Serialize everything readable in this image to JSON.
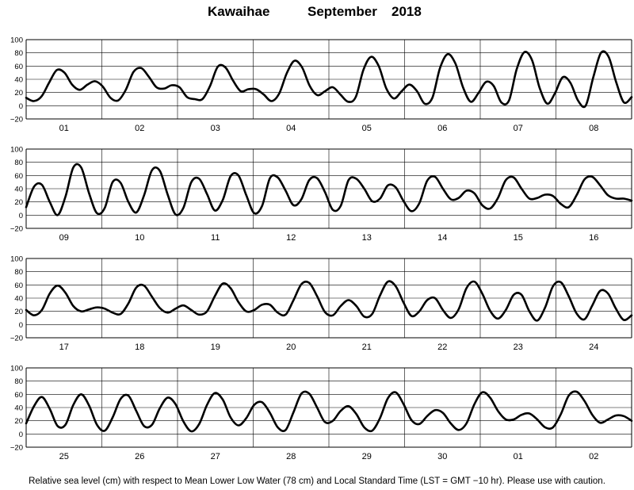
{
  "header": {
    "station": "Kawaihae",
    "month": "September",
    "year": "2018"
  },
  "footnote": "Relative sea level (cm) with respect to Mean Lower Low Water (78 cm) and Local Standard Time (LST = GMT −10 hr). Please use with caution.",
  "chart_data": {
    "type": "line",
    "title": "Kawaihae September 2018",
    "xlabel": "",
    "ylabel": "",
    "ylim": [
      -20,
      100
    ],
    "yticks": [
      "100",
      "80",
      "60",
      "40",
      "20",
      "0",
      "−20"
    ],
    "grid": true,
    "hours_per_point": 2,
    "panels": [
      {
        "days": [
          "01",
          "02",
          "03",
          "04",
          "05",
          "06",
          "07",
          "08"
        ],
        "values": [
          12,
          7,
          14,
          35,
          54,
          50,
          32,
          24,
          32,
          37,
          29,
          12,
          8,
          24,
          51,
          57,
          44,
          28,
          26,
          31,
          28,
          13,
          10,
          10,
          30,
          59,
          58,
          38,
          22,
          25,
          25,
          17,
          7,
          18,
          49,
          68,
          58,
          30,
          16,
          22,
          28,
          17,
          6,
          13,
          54,
          74,
          60,
          26,
          11,
          22,
          32,
          22,
          3,
          12,
          57,
          78,
          64,
          28,
          6,
          19,
          36,
          30,
          5,
          8,
          55,
          81,
          69,
          27,
          3,
          19,
          43,
          35,
          8,
          0,
          43,
          80,
          74,
          35,
          5,
          13
        ]
      },
      {
        "days": [
          "09",
          "10",
          "11",
          "12",
          "13",
          "14",
          "15",
          "16"
        ],
        "values": [
          12,
          43,
          46,
          20,
          0,
          28,
          72,
          72,
          33,
          3,
          11,
          50,
          49,
          20,
          4,
          30,
          68,
          67,
          31,
          1,
          11,
          50,
          55,
          32,
          7,
          23,
          59,
          60,
          30,
          3,
          14,
          56,
          57,
          37,
          15,
          24,
          53,
          56,
          35,
          8,
          14,
          53,
          55,
          40,
          21,
          25,
          45,
          42,
          21,
          6,
          18,
          52,
          58,
          40,
          24,
          26,
          37,
          33,
          15,
          10,
          26,
          53,
          57,
          40,
          25,
          26,
          31,
          29,
          17,
          12,
          30,
          54,
          58,
          45,
          30,
          25,
          25,
          22
        ]
      },
      {
        "days": [
          "17",
          "18",
          "19",
          "20",
          "21",
          "22",
          "23",
          "24"
        ],
        "values": [
          22,
          14,
          22,
          47,
          59,
          48,
          28,
          20,
          23,
          26,
          24,
          18,
          16,
          32,
          56,
          59,
          42,
          25,
          18,
          24,
          29,
          22,
          15,
          20,
          43,
          62,
          55,
          34,
          20,
          22,
          30,
          30,
          18,
          15,
          37,
          61,
          63,
          43,
          19,
          14,
          28,
          37,
          28,
          12,
          16,
          44,
          65,
          58,
          33,
          13,
          20,
          37,
          40,
          22,
          10,
          23,
          55,
          65,
          47,
          21,
          9,
          22,
          45,
          45,
          20,
          6,
          26,
          58,
          64,
          43,
          17,
          8,
          29,
          51,
          47,
          24,
          7,
          14
        ]
      },
      {
        "days": [
          "25",
          "26",
          "27",
          "28",
          "29",
          "30",
          "01",
          "02"
        ],
        "values": [
          16,
          42,
          56,
          38,
          12,
          14,
          44,
          60,
          43,
          14,
          5,
          25,
          53,
          58,
          35,
          12,
          14,
          39,
          55,
          45,
          19,
          4,
          15,
          44,
          62,
          52,
          25,
          13,
          24,
          44,
          48,
          32,
          10,
          6,
          33,
          61,
          61,
          40,
          18,
          20,
          35,
          42,
          30,
          10,
          5,
          24,
          54,
          63,
          45,
          21,
          15,
          27,
          36,
          32,
          16,
          6,
          16,
          45,
          63,
          55,
          35,
          22,
          22,
          29,
          31,
          22,
          10,
          10,
          30,
          58,
          64,
          50,
          29,
          17,
          22,
          28,
          27,
          20
        ]
      }
    ]
  }
}
